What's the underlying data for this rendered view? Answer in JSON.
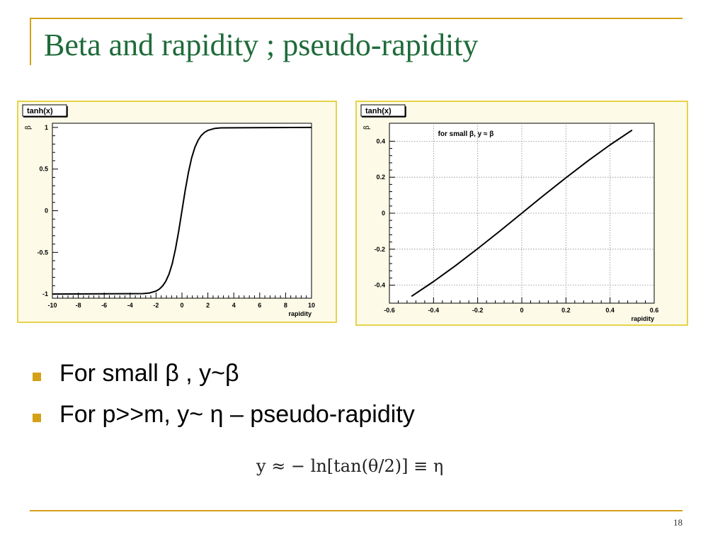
{
  "slide": {
    "title": "Beta and rapidity ; pseudo-rapidity",
    "page_number": "18",
    "accent_color": "#d4a017",
    "title_color": "#1e6b3a"
  },
  "bullets": [
    {
      "text": "For small β , y~β"
    },
    {
      "text": "For p>>m, y~ η   – pseudo-rapidity"
    }
  ],
  "formula": "y ≈ − ln[tan(θ/2)] ≡ η",
  "chart_data": [
    {
      "type": "line",
      "title": "tanh(x)",
      "xlabel": "rapidity",
      "ylabel": "β",
      "xlim": [
        -10,
        10
      ],
      "ylim": [
        -1.05,
        1.05
      ],
      "xticks": [
        -10,
        -8,
        -6,
        -4,
        -2,
        0,
        2,
        4,
        6,
        8,
        10
      ],
      "yticks": [
        -1,
        -0.5,
        0,
        0.5,
        1
      ],
      "grid": false,
      "series": [
        {
          "x": [
            -10,
            -3,
            -2.5,
            -2,
            -1.75,
            -1.5,
            -1.25,
            -1,
            -0.75,
            -0.5,
            -0.25,
            0,
            0.25,
            0.5,
            0.75,
            1,
            1.25,
            1.5,
            1.75,
            2,
            2.5,
            3,
            10
          ],
          "y": [
            -1,
            -0.995,
            -0.987,
            -0.964,
            -0.941,
            -0.905,
            -0.848,
            -0.762,
            -0.635,
            -0.462,
            -0.245,
            0,
            0.245,
            0.462,
            0.635,
            0.762,
            0.848,
            0.905,
            0.941,
            0.964,
            0.987,
            0.995,
            1
          ]
        }
      ]
    },
    {
      "type": "line",
      "title": "tanh(x)",
      "xlabel": "rapidity",
      "ylabel": "β",
      "annotation": "for small β, y ≈ β",
      "xlim": [
        -0.6,
        0.6
      ],
      "ylim": [
        -0.5,
        0.5
      ],
      "xticks": [
        -0.6,
        -0.4,
        -0.2,
        0,
        0.2,
        0.4,
        0.6
      ],
      "yticks": [
        -0.4,
        -0.2,
        0,
        0.2,
        0.4
      ],
      "grid": true,
      "series": [
        {
          "x": [
            -0.5,
            -0.4,
            -0.3,
            -0.2,
            -0.1,
            0,
            0.1,
            0.2,
            0.3,
            0.4,
            0.5
          ],
          "y": [
            -0.462,
            -0.38,
            -0.291,
            -0.197,
            -0.1,
            0,
            0.1,
            0.197,
            0.291,
            0.38,
            0.462
          ]
        }
      ]
    }
  ]
}
